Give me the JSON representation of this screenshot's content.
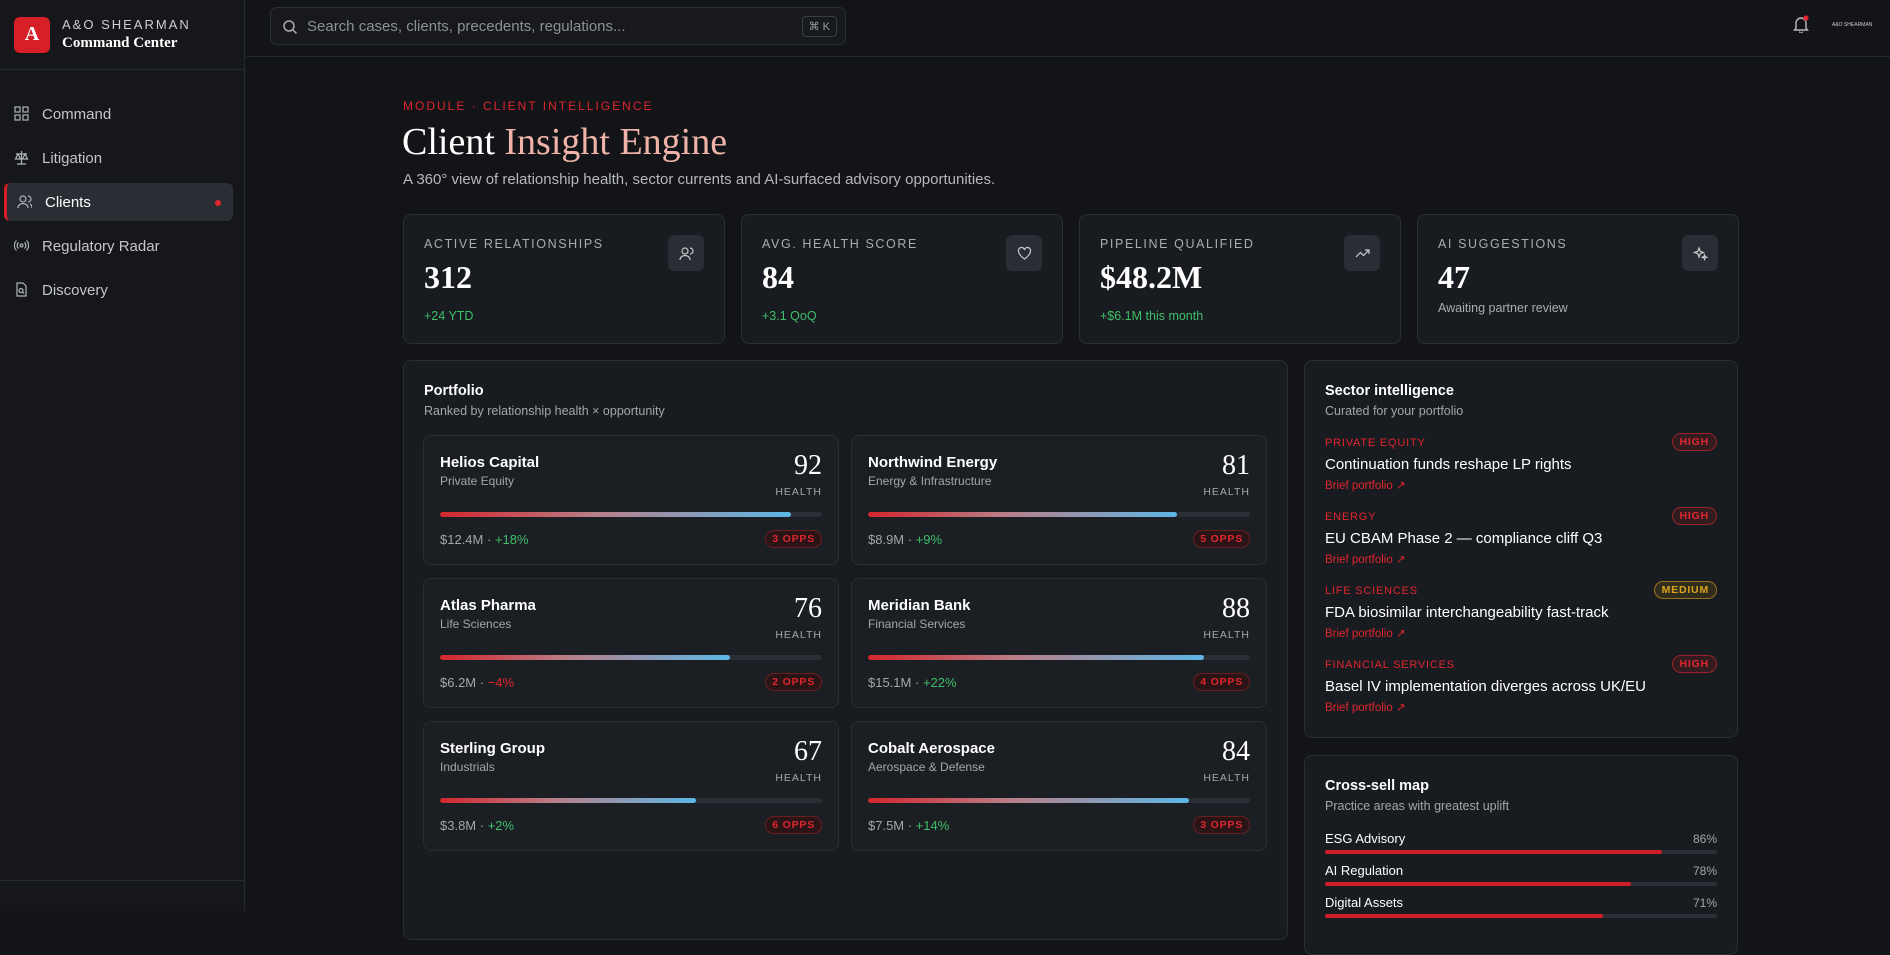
{
  "brand": {
    "logo": "A",
    "name": "A&O SHEARMAN",
    "subtitle": "Command Center"
  },
  "nav": {
    "items": [
      "Command",
      "Litigation",
      "Clients",
      "Regulatory Radar",
      "Discovery"
    ],
    "active": 2
  },
  "search": {
    "placeholder": "Search cases, clients, precedents, regulations...",
    "shortcut": "⌘ K"
  },
  "user_label": "A&O SHEARMAN",
  "header": {
    "eyebrow": "MODULE · CLIENT INTELLIGENCE",
    "title_parts": [
      "Client",
      "Insight Engine"
    ],
    "subtitle": "A 360° view of relationship health, sector currents and AI-surfaced advisory opportunities."
  },
  "kpis": [
    {
      "label": "ACTIVE RELATIONSHIPS",
      "value": "312",
      "note": "+24 YTD",
      "positive": true
    },
    {
      "label": "AVG. HEALTH SCORE",
      "value": "84",
      "note": "+3.1 QoQ",
      "positive": true
    },
    {
      "label": "PIPELINE QUALIFIED",
      "value": "$48.2M",
      "note": "+$6.1M this month",
      "positive": true
    },
    {
      "label": "AI SUGGESTIONS",
      "value": "47",
      "note": "Awaiting partner review",
      "positive": false
    }
  ],
  "portfolio": {
    "title": "Portfolio",
    "subtitle": "Ranked by relationship health × opportunity",
    "health_label": "HEALTH",
    "clients": [
      {
        "name": "Helios Capital",
        "sector": "Private Equity",
        "health": 92,
        "revenue": "$12.4M",
        "change": "+18%",
        "opps": "3 OPPS"
      },
      {
        "name": "Northwind Energy",
        "sector": "Energy & Infrastructure",
        "health": 81,
        "revenue": "$8.9M",
        "change": "+9%",
        "opps": "5 OPPS"
      },
      {
        "name": "Atlas Pharma",
        "sector": "Life Sciences",
        "health": 76,
        "revenue": "$6.2M",
        "change": "−4%",
        "opps": "2 OPPS"
      },
      {
        "name": "Meridian Bank",
        "sector": "Financial Services",
        "health": 88,
        "revenue": "$15.1M",
        "change": "+22%",
        "opps": "4 OPPS"
      },
      {
        "name": "Sterling Group",
        "sector": "Industrials",
        "health": 67,
        "revenue": "$3.8M",
        "change": "+2%",
        "opps": "6 OPPS"
      },
      {
        "name": "Cobalt Aerospace",
        "sector": "Aerospace & Defense",
        "health": 84,
        "revenue": "$7.5M",
        "change": "+14%",
        "opps": "3 OPPS"
      }
    ]
  },
  "sector_intel": {
    "title": "Sector intelligence",
    "subtitle": "Curated for your portfolio",
    "items": [
      {
        "sector": "PRIVATE EQUITY",
        "priority": "HIGH",
        "color": "#e0262f",
        "headline": "Continuation funds reshape LP rights",
        "link": "Brief portfolio ↗"
      },
      {
        "sector": "ENERGY",
        "priority": "HIGH",
        "color": "#e0262f",
        "headline": "EU CBAM Phase 2 — compliance cliff Q3",
        "link": "Brief portfolio ↗"
      },
      {
        "sector": "LIFE SCIENCES",
        "priority": "MEDIUM",
        "color": "#d9a21b",
        "headline": "FDA biosimilar interchangeability fast-track",
        "link": "Brief portfolio ↗"
      },
      {
        "sector": "FINANCIAL SERVICES",
        "priority": "HIGH",
        "color": "#e0262f",
        "headline": "Basel IV implementation diverges across UK/EU",
        "link": "Brief portfolio ↗"
      }
    ]
  },
  "cross_sell": {
    "title": "Cross-sell map",
    "subtitle": "Practice areas with greatest uplift",
    "areas": [
      "ESG Advisory",
      "AI Regulation",
      "Digital Assets"
    ],
    "values": [
      86,
      78,
      71
    ],
    "value_labels": [
      "86%",
      "78%",
      "71%"
    ]
  }
}
